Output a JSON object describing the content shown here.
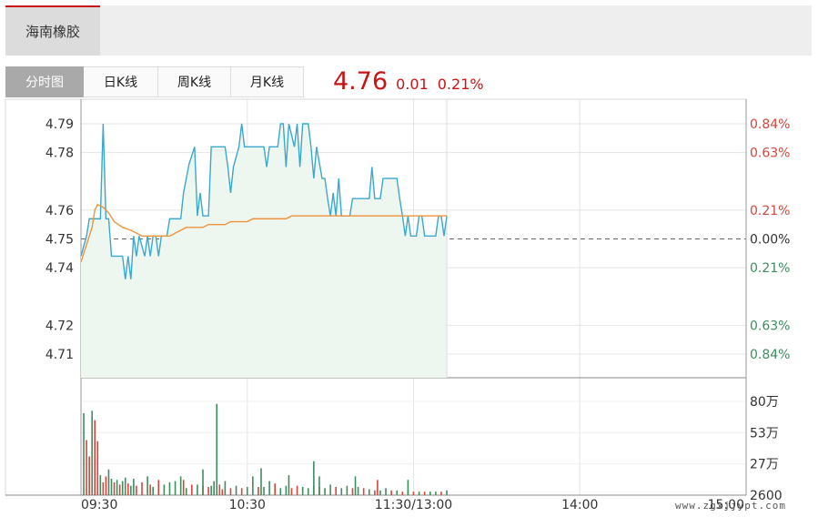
{
  "top_tab": {
    "label": "海南橡胶"
  },
  "period_tabs": [
    {
      "label": "分时图",
      "active": true
    },
    {
      "label": "日K线",
      "active": false
    },
    {
      "label": "周K线",
      "active": false
    },
    {
      "label": "月K线",
      "active": false
    }
  ],
  "quote": {
    "price": "4.76",
    "change": "0.01",
    "change_pct": "0.21%"
  },
  "watermark": "www.zgxjjypt.com",
  "colors": {
    "up": "#d9443a",
    "down": "#3e8d5f",
    "price_line": "#3aa8cf",
    "avg_line": "#f0923a",
    "area": "#eef6f0",
    "grid": "#e5e5e5",
    "axis": "#999999"
  },
  "chart_data": {
    "type": "line",
    "title": "",
    "prev_close": 4.75,
    "price_ticks": [
      {
        "value": 4.79,
        "label": "4.79",
        "pct": "0.84%",
        "dir": "up"
      },
      {
        "value": 4.78,
        "label": "4.78",
        "pct": "0.63%",
        "dir": "up"
      },
      {
        "value": 4.76,
        "label": "4.76",
        "pct": "0.21%",
        "dir": "up"
      },
      {
        "value": 4.75,
        "label": "4.75",
        "pct": "0.00%",
        "dir": "flat"
      },
      {
        "value": 4.74,
        "label": "4.74",
        "pct": "0.21%",
        "dir": "down"
      },
      {
        "value": 4.72,
        "label": "4.72",
        "pct": "0.63%",
        "dir": "down"
      },
      {
        "value": 4.71,
        "label": "4.71",
        "pct": "0.84%",
        "dir": "down"
      }
    ],
    "time_ticks": [
      "09:30",
      "10:30",
      "11:30/13:00",
      "14:00",
      "15:00"
    ],
    "volume_ticks": [
      "80万",
      "53万",
      "27万",
      "2600"
    ],
    "volume_max": 800000,
    "session_minutes": 240,
    "price_series": [
      [
        0,
        4.744
      ],
      [
        2,
        4.751
      ],
      [
        3,
        4.757
      ],
      [
        5,
        4.757
      ],
      [
        7,
        4.757
      ],
      [
        8,
        4.79
      ],
      [
        9,
        4.757
      ],
      [
        10,
        4.757
      ],
      [
        11,
        4.744
      ],
      [
        13,
        4.744
      ],
      [
        15,
        4.744
      ],
      [
        16,
        4.736
      ],
      [
        17,
        4.744
      ],
      [
        18,
        4.736
      ],
      [
        19,
        4.751
      ],
      [
        20,
        4.744
      ],
      [
        21,
        4.751
      ],
      [
        23,
        4.744
      ],
      [
        24,
        4.751
      ],
      [
        25,
        4.744
      ],
      [
        26,
        4.751
      ],
      [
        27,
        4.751
      ],
      [
        28,
        4.744
      ],
      [
        29,
        4.751
      ],
      [
        31,
        4.751
      ],
      [
        32,
        4.757
      ],
      [
        34,
        4.757
      ],
      [
        36,
        4.757
      ],
      [
        37,
        4.766
      ],
      [
        39,
        4.776
      ],
      [
        41,
        4.782
      ],
      [
        42,
        4.758
      ],
      [
        43,
        4.766
      ],
      [
        44,
        4.758
      ],
      [
        46,
        4.758
      ],
      [
        47,
        4.782
      ],
      [
        49,
        4.782
      ],
      [
        52,
        4.782
      ],
      [
        53,
        4.775
      ],
      [
        54,
        4.766
      ],
      [
        55,
        4.775
      ],
      [
        57,
        4.782
      ],
      [
        58,
        4.79
      ],
      [
        59,
        4.782
      ],
      [
        61,
        4.782
      ],
      [
        64,
        4.782
      ],
      [
        66,
        4.782
      ],
      [
        67,
        4.775
      ],
      [
        68,
        4.782
      ],
      [
        71,
        4.782
      ],
      [
        72,
        4.79
      ],
      [
        73,
        4.79
      ],
      [
        74,
        4.775
      ],
      [
        75,
        4.79
      ],
      [
        77,
        4.782
      ],
      [
        78,
        4.79
      ],
      [
        79,
        4.775
      ],
      [
        80,
        4.79
      ],
      [
        82,
        4.79
      ],
      [
        83,
        4.782
      ],
      [
        84,
        4.771
      ],
      [
        85,
        4.782
      ],
      [
        87,
        4.771
      ],
      [
        88,
        4.771
      ],
      [
        89,
        4.764
      ],
      [
        90,
        4.758
      ],
      [
        91,
        4.766
      ],
      [
        92,
        4.758
      ],
      [
        93,
        4.771
      ],
      [
        94,
        4.758
      ],
      [
        95,
        4.758
      ],
      [
        97,
        4.758
      ],
      [
        98,
        4.764
      ],
      [
        100,
        4.764
      ],
      [
        104,
        4.764
      ],
      [
        105,
        4.775
      ],
      [
        106,
        4.764
      ],
      [
        108,
        4.764
      ],
      [
        109,
        4.771
      ],
      [
        111,
        4.771
      ],
      [
        114,
        4.771
      ],
      [
        115,
        4.764
      ],
      [
        116,
        4.758
      ],
      [
        117,
        4.751
      ],
      [
        118,
        4.758
      ],
      [
        119,
        4.751
      ],
      [
        121,
        4.751
      ],
      [
        122,
        4.758
      ],
      [
        123,
        4.758
      ],
      [
        124,
        4.751
      ],
      [
        126,
        4.751
      ],
      [
        128,
        4.751
      ],
      [
        129,
        4.758
      ],
      [
        130,
        4.758
      ],
      [
        131,
        4.751
      ],
      [
        132,
        4.758
      ]
    ],
    "avg_series": [
      [
        0,
        4.742
      ],
      [
        2,
        4.748
      ],
      [
        3,
        4.751
      ],
      [
        4,
        4.754
      ],
      [
        5,
        4.76
      ],
      [
        6,
        4.762
      ],
      [
        8,
        4.761
      ],
      [
        10,
        4.759
      ],
      [
        12,
        4.756
      ],
      [
        15,
        4.754
      ],
      [
        18,
        4.753
      ],
      [
        20,
        4.752
      ],
      [
        22,
        4.751
      ],
      [
        24,
        4.751
      ],
      [
        26,
        4.751
      ],
      [
        28,
        4.751
      ],
      [
        30,
        4.751
      ],
      [
        32,
        4.751
      ],
      [
        34,
        4.752
      ],
      [
        36,
        4.753
      ],
      [
        38,
        4.754
      ],
      [
        40,
        4.754
      ],
      [
        42,
        4.754
      ],
      [
        44,
        4.754
      ],
      [
        46,
        4.755
      ],
      [
        48,
        4.755
      ],
      [
        50,
        4.755
      ],
      [
        52,
        4.755
      ],
      [
        54,
        4.756
      ],
      [
        56,
        4.756
      ],
      [
        58,
        4.756
      ],
      [
        60,
        4.756
      ],
      [
        62,
        4.757
      ],
      [
        64,
        4.757
      ],
      [
        66,
        4.757
      ],
      [
        68,
        4.757
      ],
      [
        70,
        4.757
      ],
      [
        72,
        4.757
      ],
      [
        74,
        4.757
      ],
      [
        76,
        4.758
      ],
      [
        78,
        4.758
      ],
      [
        80,
        4.758
      ],
      [
        84,
        4.758
      ],
      [
        88,
        4.758
      ],
      [
        92,
        4.758
      ],
      [
        96,
        4.758
      ],
      [
        100,
        4.758
      ],
      [
        104,
        4.758
      ],
      [
        108,
        4.758
      ],
      [
        112,
        4.758
      ],
      [
        116,
        4.758
      ],
      [
        120,
        4.758
      ],
      [
        124,
        4.758
      ],
      [
        128,
        4.758
      ],
      [
        132,
        4.758
      ]
    ],
    "volume_series": [
      [
        1,
        700000,
        "down"
      ],
      [
        2,
        470000,
        "up"
      ],
      [
        3,
        330000,
        "up"
      ],
      [
        4,
        720000,
        "down"
      ],
      [
        5,
        640000,
        "up"
      ],
      [
        6,
        460000,
        "up"
      ],
      [
        7,
        170000,
        "down"
      ],
      [
        8,
        110000,
        "up"
      ],
      [
        9,
        160000,
        "up"
      ],
      [
        10,
        220000,
        "down"
      ],
      [
        11,
        140000,
        "down"
      ],
      [
        12,
        110000,
        "up"
      ],
      [
        13,
        130000,
        "down"
      ],
      [
        14,
        90000,
        "up"
      ],
      [
        15,
        120000,
        "down"
      ],
      [
        16,
        150000,
        "down"
      ],
      [
        17,
        100000,
        "up"
      ],
      [
        18,
        80000,
        "down"
      ],
      [
        19,
        140000,
        "down"
      ],
      [
        20,
        80000,
        "up"
      ],
      [
        22,
        110000,
        "up"
      ],
      [
        24,
        160000,
        "down"
      ],
      [
        25,
        90000,
        "up"
      ],
      [
        26,
        70000,
        "down"
      ],
      [
        28,
        130000,
        "up"
      ],
      [
        30,
        90000,
        "down"
      ],
      [
        32,
        110000,
        "down"
      ],
      [
        34,
        120000,
        "down"
      ],
      [
        36,
        160000,
        "down"
      ],
      [
        37,
        130000,
        "up"
      ],
      [
        38,
        60000,
        "down"
      ],
      [
        40,
        90000,
        "up"
      ],
      [
        42,
        90000,
        "down"
      ],
      [
        44,
        80000,
        "up"
      ],
      [
        46,
        70000,
        "up"
      ],
      [
        47,
        80000,
        "down"
      ],
      [
        48,
        120000,
        "down"
      ],
      [
        49,
        780000,
        "down"
      ],
      [
        50,
        90000,
        "up"
      ],
      [
        52,
        120000,
        "down"
      ],
      [
        54,
        60000,
        "up"
      ],
      [
        56,
        80000,
        "down"
      ],
      [
        58,
        60000,
        "up"
      ],
      [
        60,
        70000,
        "down"
      ],
      [
        62,
        160000,
        "down"
      ],
      [
        64,
        70000,
        "up"
      ],
      [
        66,
        70000,
        "down"
      ],
      [
        68,
        120000,
        "down"
      ],
      [
        70,
        100000,
        "up"
      ],
      [
        72,
        60000,
        "down"
      ],
      [
        74,
        80000,
        "down"
      ],
      [
        76,
        60000,
        "up"
      ],
      [
        78,
        80000,
        "up"
      ],
      [
        80,
        70000,
        "down"
      ],
      [
        82,
        60000,
        "down"
      ],
      [
        84,
        80000,
        "down"
      ],
      [
        86,
        70000,
        "up"
      ],
      [
        88,
        60000,
        "down"
      ],
      [
        90,
        90000,
        "down"
      ],
      [
        92,
        70000,
        "up"
      ],
      [
        94,
        60000,
        "down"
      ],
      [
        96,
        80000,
        "down"
      ],
      [
        98,
        60000,
        "up"
      ],
      [
        100,
        70000,
        "down"
      ],
      [
        102,
        60000,
        "up"
      ],
      [
        104,
        50000,
        "down"
      ],
      [
        106,
        40000,
        "up"
      ],
      [
        108,
        40000,
        "down"
      ],
      [
        110,
        60000,
        "down"
      ],
      [
        112,
        40000,
        "up"
      ],
      [
        114,
        40000,
        "down"
      ],
      [
        116,
        30000,
        "up"
      ],
      [
        118,
        40000,
        "down"
      ],
      [
        120,
        30000,
        "up"
      ],
      [
        122,
        30000,
        "down"
      ],
      [
        124,
        30000,
        "up"
      ],
      [
        126,
        30000,
        "down"
      ],
      [
        128,
        30000,
        "down"
      ],
      [
        130,
        30000,
        "up"
      ],
      [
        132,
        40000,
        "down"
      ],
      [
        65,
        230000,
        "down"
      ],
      [
        86,
        160000,
        "down"
      ],
      [
        99,
        160000,
        "down"
      ],
      [
        44,
        220000,
        "down"
      ],
      [
        118,
        130000,
        "down"
      ],
      [
        51,
        50000,
        "up"
      ],
      [
        84,
        290000,
        "down"
      ],
      [
        107,
        130000,
        "up"
      ],
      [
        75,
        170000,
        "down"
      ]
    ]
  }
}
